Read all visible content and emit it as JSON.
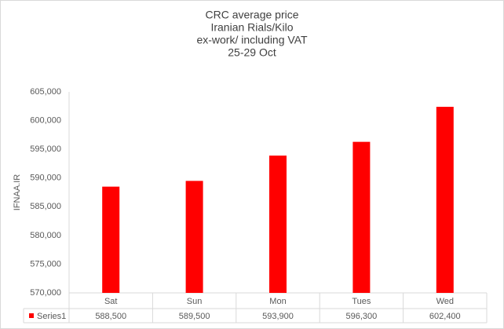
{
  "chart_data": {
    "type": "bar",
    "title_lines": [
      "CRC average price",
      "Iranian Rials/Kilo",
      "ex-work/ including VAT",
      "25-29 Oct"
    ],
    "y_label": "IFNAA.IR",
    "categories": [
      "Sat",
      "Sun",
      "Mon",
      "Tues",
      "Wed"
    ],
    "series": [
      {
        "name": "Series1",
        "color": "#ff0000",
        "values": [
          588500,
          589500,
          593900,
          596300,
          602400
        ],
        "value_labels": [
          "588,500",
          "589,500",
          "593,900",
          "596,300",
          "602,400"
        ]
      }
    ],
    "ylim": [
      570000,
      605000
    ],
    "yticks": [
      {
        "value": 570000,
        "label": "570,000"
      },
      {
        "value": 575000,
        "label": "575,000"
      },
      {
        "value": 580000,
        "label": "580,000"
      },
      {
        "value": 585000,
        "label": "585,000"
      },
      {
        "value": 590000,
        "label": "590,000"
      },
      {
        "value": 595000,
        "label": "595,000"
      },
      {
        "value": 600000,
        "label": "600,000"
      },
      {
        "value": 605000,
        "label": "605,000"
      }
    ],
    "grid": false,
    "data_table": true
  }
}
